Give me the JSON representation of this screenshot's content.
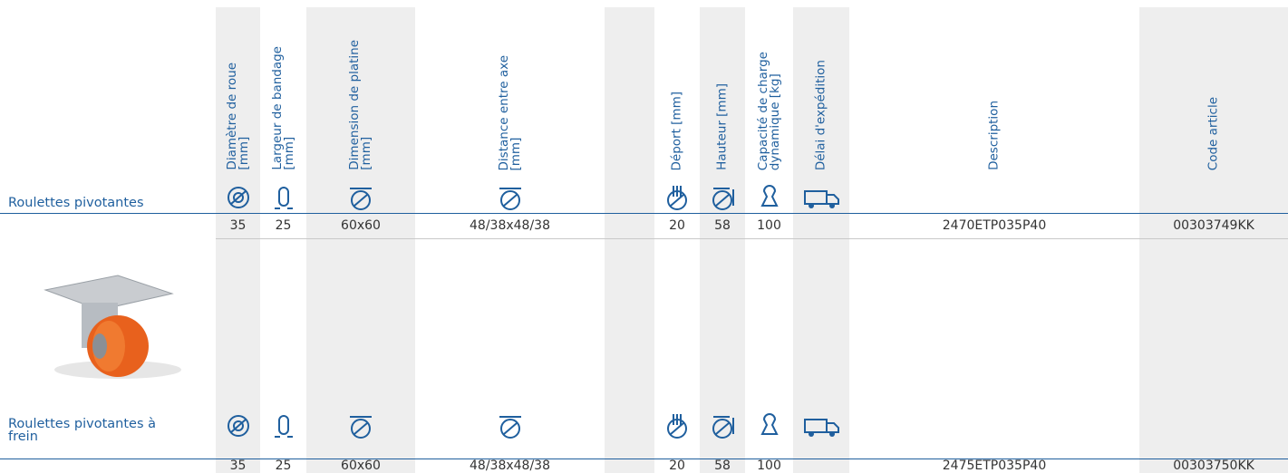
{
  "columns": [
    {
      "label": [
        "Diamètre de roue",
        "[mm]"
      ]
    },
    {
      "label": [
        "Largeur de bandage",
        "[mm]"
      ]
    },
    {
      "label": [
        "Dimension de platine",
        "[mm]"
      ]
    },
    {
      "label": [
        "Distance entre axe",
        "[mm]"
      ]
    },
    {
      "label": [
        "Déport [mm]"
      ]
    },
    {
      "label": [
        "Hauteur [mm]"
      ]
    },
    {
      "label": [
        "Capacité de charge",
        "dynamique [kg]"
      ]
    },
    {
      "label": [
        "Délai d'expédition"
      ]
    },
    {
      "label": [
        "Description"
      ]
    },
    {
      "label": [
        "Code article"
      ]
    }
  ],
  "rows": [
    {
      "label": "Roulettes pivotantes",
      "cells": [
        "35",
        "25",
        "60x60",
        "48/38x48/38",
        "20",
        "58",
        "100",
        null,
        "2470ETP035P40",
        "00303749KK"
      ]
    },
    {
      "label": "Roulettes pivotantes à frein",
      "cells": [
        "35",
        "25",
        "60x60",
        "48/38x48/38",
        "20",
        "58",
        "100",
        null,
        "2475ETP035P40",
        "00303750KK"
      ]
    }
  ]
}
